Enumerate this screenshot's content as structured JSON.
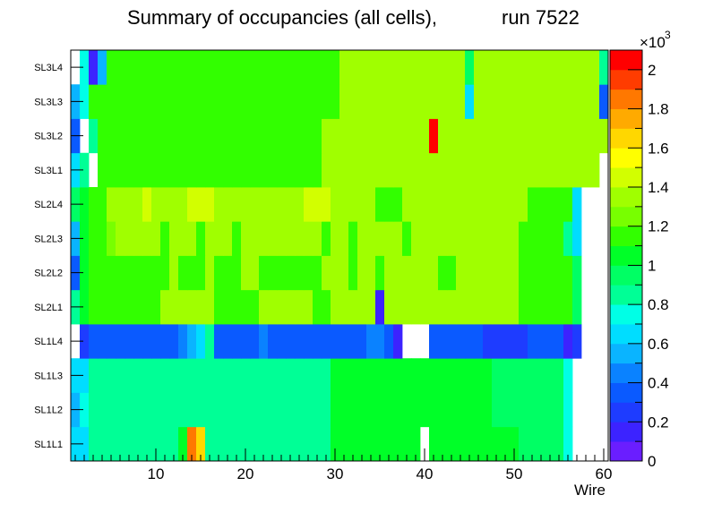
{
  "chart_data": {
    "type": "heatmap",
    "title_left": "Summary of occupancies (all cells),",
    "title_right": "run 7522",
    "xlabel": "Wire",
    "x_range": [
      0.5,
      60.5
    ],
    "x_ticks": [
      "10",
      "20",
      "30",
      "40",
      "50",
      "60"
    ],
    "rows": [
      "SL1L1",
      "SL1L2",
      "SL1L3",
      "SL1L4",
      "SL2L1",
      "SL2L2",
      "SL2L3",
      "SL2L4",
      "SL3L1",
      "SL3L2",
      "SL3L3",
      "SL3L4"
    ],
    "z_range": [
      0,
      2100
    ],
    "z_exponent_label": "×10",
    "z_exponent_power": "3",
    "z_ticks": [
      "0",
      "0.2",
      "0.4",
      "0.6",
      "0.8",
      "1",
      "1.2",
      "1.4",
      "1.6",
      "1.8",
      "2"
    ],
    "palette": [
      "#6a1eff",
      "#3c23ff",
      "#1e3cff",
      "#0a5aff",
      "#0a82ff",
      "#0ab4ff",
      "#00ddff",
      "#00ffe6",
      "#00ff96",
      "#00ff64",
      "#00ff28",
      "#32ff00",
      "#78ff00",
      "#a0ff00",
      "#d2ff00",
      "#ffff00",
      "#ffd700",
      "#ffaa00",
      "#ff7800",
      "#ff3c00",
      "#ff0000"
    ],
    "values": [
      [
        650,
        650,
        880,
        880,
        880,
        880,
        880,
        880,
        880,
        880,
        880,
        880,
        1000,
        1850,
        1650,
        880,
        880,
        880,
        880,
        880,
        880,
        880,
        880,
        880,
        880,
        880,
        880,
        880,
        880,
        1050,
        1050,
        1050,
        1050,
        1050,
        1050,
        1050,
        1050,
        1050,
        1050,
        null,
        1050,
        1050,
        1050,
        1050,
        1050,
        1050,
        1050,
        1050,
        1050,
        1050,
        920,
        920,
        920,
        920,
        920,
        700,
        null,
        null,
        null,
        null
      ],
      [
        550,
        700,
        850,
        850,
        880,
        880,
        880,
        880,
        880,
        880,
        880,
        880,
        880,
        880,
        880,
        880,
        880,
        880,
        880,
        880,
        880,
        880,
        880,
        880,
        880,
        880,
        880,
        880,
        880,
        1050,
        1050,
        1050,
        1050,
        1050,
        1050,
        1050,
        1050,
        1050,
        1050,
        1050,
        1050,
        1050,
        1050,
        1050,
        1050,
        1050,
        1050,
        920,
        920,
        920,
        920,
        920,
        920,
        920,
        920,
        700,
        null,
        null,
        null,
        null
      ],
      [
        650,
        650,
        850,
        850,
        880,
        880,
        880,
        880,
        880,
        880,
        880,
        880,
        880,
        880,
        880,
        880,
        880,
        880,
        880,
        880,
        880,
        880,
        880,
        880,
        880,
        880,
        880,
        880,
        880,
        1050,
        1050,
        1050,
        1050,
        1050,
        1050,
        1050,
        1050,
        1050,
        1050,
        1050,
        1050,
        1050,
        1050,
        1050,
        1050,
        1050,
        1050,
        920,
        920,
        920,
        920,
        920,
        920,
        920,
        920,
        700,
        null,
        null,
        null,
        null
      ],
      [
        null,
        250,
        350,
        350,
        350,
        350,
        350,
        350,
        350,
        350,
        350,
        350,
        400,
        550,
        650,
        800,
        350,
        350,
        350,
        350,
        350,
        400,
        350,
        350,
        350,
        350,
        350,
        350,
        350,
        350,
        350,
        350,
        350,
        400,
        400,
        350,
        100,
        null,
        null,
        null,
        350,
        350,
        350,
        350,
        350,
        350,
        200,
        200,
        200,
        200,
        200,
        350,
        350,
        350,
        350,
        100,
        200,
        null,
        null,
        null
      ],
      [
        800,
        1000,
        1150,
        1150,
        1150,
        1150,
        1150,
        1150,
        1150,
        1150,
        1300,
        1300,
        1300,
        1300,
        1300,
        1300,
        1150,
        1150,
        1150,
        1150,
        1150,
        1300,
        1300,
        1300,
        1300,
        1300,
        1300,
        1150,
        1150,
        1300,
        1300,
        1300,
        1300,
        1300,
        150,
        1300,
        1300,
        1300,
        1300,
        1300,
        1300,
        1300,
        1300,
        1300,
        1300,
        1300,
        1300,
        1300,
        1300,
        1300,
        1100,
        1100,
        1100,
        1100,
        1100,
        1100,
        900,
        null,
        null,
        null
      ],
      [
        350,
        1000,
        1150,
        1150,
        1150,
        1150,
        1150,
        1150,
        1150,
        1150,
        1150,
        1300,
        1150,
        1150,
        1150,
        1300,
        1150,
        1150,
        1150,
        1300,
        1300,
        1150,
        1150,
        1150,
        1150,
        1150,
        1150,
        1150,
        1300,
        1300,
        1300,
        1150,
        1300,
        1300,
        1150,
        1300,
        1300,
        1300,
        1300,
        1300,
        1300,
        1150,
        1150,
        1300,
        1300,
        1300,
        1300,
        1300,
        1300,
        1300,
        1150,
        1150,
        1150,
        1150,
        1150,
        1150,
        950,
        null,
        null,
        null
      ],
      [
        500,
        1000,
        1150,
        1150,
        1250,
        1300,
        1300,
        1300,
        1300,
        1300,
        1150,
        1300,
        1300,
        1300,
        1150,
        1300,
        1300,
        1300,
        1150,
        1300,
        1300,
        1300,
        1300,
        1300,
        1300,
        1300,
        1300,
        1300,
        1150,
        1300,
        1300,
        1150,
        1300,
        1300,
        1300,
        1300,
        1300,
        1150,
        1300,
        1300,
        1300,
        1300,
        1300,
        1300,
        1300,
        1300,
        1300,
        1300,
        1300,
        1300,
        1150,
        1150,
        1150,
        1150,
        1150,
        800,
        650,
        null,
        null,
        null
      ],
      [
        900,
        1000,
        1150,
        1150,
        1300,
        1300,
        1300,
        1300,
        1400,
        1300,
        1300,
        1300,
        1300,
        1400,
        1400,
        1400,
        1300,
        1300,
        1300,
        1300,
        1300,
        1300,
        1300,
        1300,
        1300,
        1300,
        1400,
        1400,
        1400,
        1300,
        1300,
        1300,
        1300,
        1300,
        1150,
        1150,
        1150,
        1300,
        1300,
        1300,
        1300,
        1300,
        1300,
        1300,
        1300,
        1300,
        1300,
        1300,
        1300,
        1300,
        1300,
        1150,
        1150,
        1150,
        1150,
        1150,
        650,
        null,
        null,
        null
      ],
      [
        600,
        800,
        null,
        1150,
        1150,
        1150,
        1150,
        1150,
        1150,
        1150,
        1150,
        1150,
        1150,
        1150,
        1150,
        1150,
        1150,
        1150,
        1150,
        1150,
        1150,
        1150,
        1150,
        1150,
        1150,
        1150,
        1150,
        1150,
        1300,
        1300,
        1300,
        1300,
        1300,
        1300,
        1300,
        1300,
        1300,
        1300,
        1300,
        1300,
        1300,
        1300,
        1300,
        1300,
        1300,
        1300,
        1300,
        1300,
        1300,
        1300,
        1300,
        1300,
        1300,
        1300,
        1300,
        1300,
        1300,
        1300,
        1300,
        null
      ],
      [
        350,
        null,
        850,
        1150,
        1150,
        1150,
        1150,
        1150,
        1150,
        1150,
        1150,
        1150,
        1150,
        1150,
        1150,
        1150,
        1150,
        1150,
        1150,
        1150,
        1150,
        1150,
        1150,
        1150,
        1150,
        1150,
        1150,
        1150,
        1300,
        1300,
        1300,
        1300,
        1300,
        1300,
        1300,
        1300,
        1300,
        1300,
        1300,
        1300,
        2000,
        1300,
        1300,
        1300,
        1300,
        1300,
        1300,
        1300,
        1300,
        1300,
        1300,
        1300,
        1300,
        1300,
        1300,
        1300,
        1300,
        1300,
        1300,
        1300
      ],
      [
        550,
        700,
        1150,
        1150,
        1150,
        1150,
        1150,
        1150,
        1150,
        1150,
        1150,
        1150,
        1150,
        1150,
        1150,
        1150,
        1150,
        1150,
        1150,
        1150,
        1150,
        1150,
        1150,
        1150,
        1150,
        1150,
        1150,
        1150,
        1150,
        1150,
        1300,
        1300,
        1300,
        1300,
        1300,
        1300,
        1300,
        1300,
        1300,
        1300,
        1300,
        1300,
        1300,
        1300,
        600,
        1300,
        1300,
        1300,
        1300,
        1300,
        1300,
        1300,
        1300,
        1300,
        1300,
        1300,
        1300,
        1300,
        1300,
        350
      ],
      [
        null,
        750,
        150,
        550,
        1150,
        1150,
        1150,
        1150,
        1150,
        1150,
        1150,
        1150,
        1150,
        1150,
        1150,
        1150,
        1150,
        1150,
        1150,
        1150,
        1150,
        1150,
        1150,
        1150,
        1150,
        1150,
        1150,
        1150,
        1150,
        1150,
        1300,
        1300,
        1300,
        1300,
        1300,
        1300,
        1300,
        1300,
        1300,
        1300,
        1300,
        1300,
        1300,
        1300,
        900,
        1300,
        1300,
        1300,
        1300,
        1300,
        1300,
        1300,
        1300,
        1300,
        1300,
        1300,
        1300,
        1300,
        1300,
        800
      ]
    ]
  }
}
